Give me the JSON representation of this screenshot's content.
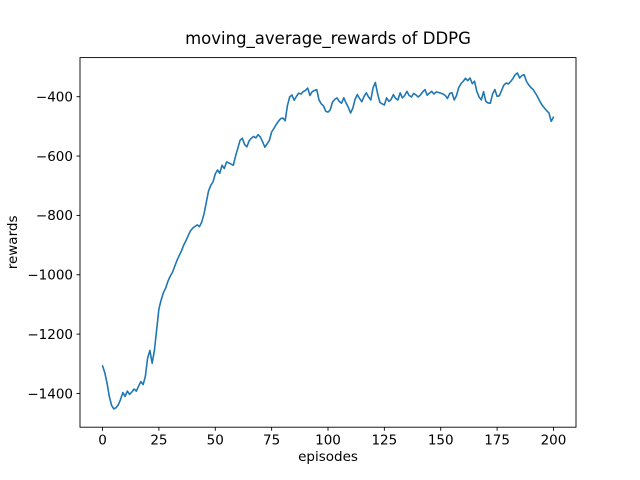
{
  "window": {
    "background": "#ffffff"
  },
  "chart_data": {
    "type": "line",
    "title": "moving_average_rewards of DDPG",
    "xlabel": "episodes",
    "ylabel": "rewards",
    "grid": false,
    "legend": false,
    "line_color": "#1f77b4",
    "xlim": [
      -10,
      210
    ],
    "ylim": [
      -1513.6,
      -268.3
    ],
    "x_tick_values": [
      0,
      25,
      50,
      75,
      100,
      125,
      150,
      175,
      200
    ],
    "x_tick_labels": [
      "0",
      "25",
      "50",
      "75",
      "100",
      "125",
      "150",
      "175",
      "200"
    ],
    "y_tick_values": [
      -400,
      -600,
      -800,
      -1000,
      -1200,
      -1400
    ],
    "y_tick_labels": [
      "−400",
      "−600",
      "−800",
      "−1000",
      "−1200",
      "−1400"
    ],
    "series": [
      {
        "name": "moving_average_rewards",
        "x": [
          0,
          1,
          2,
          3,
          4,
          5,
          6,
          7,
          8,
          9,
          10,
          11,
          12,
          13,
          14,
          15,
          16,
          17,
          18,
          19,
          20,
          21,
          22,
          23,
          24,
          25,
          26,
          27,
          28,
          29,
          30,
          31,
          32,
          33,
          34,
          35,
          36,
          37,
          38,
          39,
          40,
          41,
          42,
          43,
          44,
          45,
          46,
          47,
          48,
          49,
          50,
          51,
          52,
          53,
          54,
          55,
          56,
          57,
          58,
          59,
          60,
          61,
          62,
          63,
          64,
          65,
          66,
          67,
          68,
          69,
          70,
          71,
          72,
          73,
          74,
          75,
          76,
          77,
          78,
          79,
          80,
          81,
          82,
          83,
          84,
          85,
          86,
          87,
          88,
          89,
          90,
          91,
          92,
          93,
          94,
          95,
          96,
          97,
          98,
          99,
          100,
          101,
          102,
          103,
          104,
          105,
          106,
          107,
          108,
          109,
          110,
          111,
          112,
          113,
          114,
          115,
          116,
          117,
          118,
          119,
          120,
          121,
          122,
          123,
          124,
          125,
          126,
          127,
          128,
          129,
          130,
          131,
          132,
          133,
          134,
          135,
          136,
          137,
          138,
          139,
          140,
          141,
          142,
          143,
          144,
          145,
          146,
          147,
          148,
          149,
          150,
          151,
          152,
          153,
          154,
          155,
          156,
          157,
          158,
          159,
          160,
          161,
          162,
          163,
          164,
          165,
          166,
          167,
          168,
          169,
          170,
          171,
          172,
          173,
          174,
          175,
          176,
          177,
          178,
          179,
          180,
          181,
          182,
          183,
          184,
          185,
          186,
          187,
          188,
          189,
          190,
          191,
          192,
          193,
          194,
          195,
          196,
          197,
          198,
          199,
          200
        ],
        "y": [
          -1307,
          -1330,
          -1365,
          -1410,
          -1440,
          -1452,
          -1448,
          -1438,
          -1420,
          -1397,
          -1410,
          -1392,
          -1403,
          -1395,
          -1385,
          -1392,
          -1375,
          -1360,
          -1370,
          -1342,
          -1280,
          -1255,
          -1298,
          -1255,
          -1185,
          -1115,
          -1085,
          -1060,
          -1045,
          -1022,
          -1005,
          -992,
          -972,
          -952,
          -935,
          -920,
          -900,
          -885,
          -868,
          -852,
          -843,
          -837,
          -832,
          -838,
          -822,
          -795,
          -757,
          -718,
          -699,
          -687,
          -660,
          -647,
          -658,
          -631,
          -642,
          -620,
          -623,
          -627,
          -631,
          -600,
          -574,
          -547,
          -540,
          -561,
          -569,
          -549,
          -540,
          -534,
          -539,
          -528,
          -536,
          -552,
          -570,
          -559,
          -547,
          -519,
          -507,
          -494,
          -483,
          -474,
          -472,
          -481,
          -430,
          -401,
          -394,
          -412,
          -399,
          -388,
          -391,
          -383,
          -379,
          -371,
          -396,
          -383,
          -379,
          -376,
          -411,
          -424,
          -431,
          -449,
          -452,
          -444,
          -418,
          -409,
          -404,
          -416,
          -422,
          -404,
          -421,
          -436,
          -455,
          -439,
          -409,
          -393,
          -406,
          -417,
          -399,
          -387,
          -401,
          -411,
          -370,
          -352,
          -390,
          -419,
          -424,
          -428,
          -404,
          -416,
          -409,
          -393,
          -406,
          -411,
          -387,
          -404,
          -396,
          -382,
          -396,
          -401,
          -389,
          -394,
          -401,
          -394,
          -384,
          -376,
          -395,
          -388,
          -382,
          -391,
          -384,
          -386,
          -388,
          -391,
          -396,
          -406,
          -389,
          -387,
          -411,
          -396,
          -369,
          -356,
          -348,
          -338,
          -346,
          -337,
          -356,
          -348,
          -382,
          -401,
          -411,
          -383,
          -416,
          -421,
          -422,
          -391,
          -376,
          -399,
          -397,
          -379,
          -361,
          -354,
          -357,
          -349,
          -339,
          -326,
          -320,
          -337,
          -329,
          -326,
          -348,
          -360,
          -369,
          -376,
          -388,
          -401,
          -416,
          -429,
          -438,
          -447,
          -455,
          -483,
          -469
        ]
      }
    ]
  }
}
